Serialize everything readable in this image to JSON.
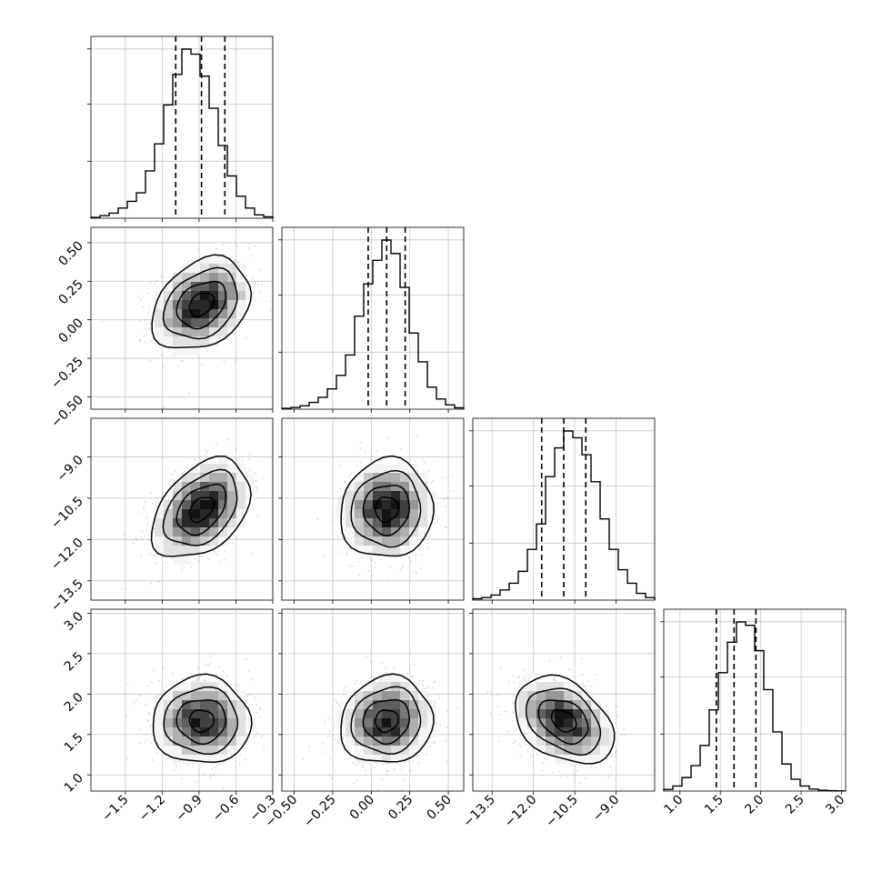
{
  "chart_data": {
    "type": "corner",
    "grid": true,
    "parameters": [
      {
        "range": [
          -1.78,
          -0.3
        ],
        "ticks": [
          -1.5,
          -1.2,
          -0.9,
          -0.6,
          -0.3
        ],
        "tick_labels": [
          "−1.5",
          "−1.2",
          "−0.9",
          "−0.6",
          "−0.3"
        ],
        "quantiles": [
          -1.09,
          -0.88,
          -0.69
        ],
        "hist": [
          0.005,
          0.015,
          0.03,
          0.06,
          0.1,
          0.15,
          0.28,
          0.44,
          0.67,
          0.85,
          1.0,
          0.97,
          0.84,
          0.65,
          0.43,
          0.25,
          0.13,
          0.06,
          0.02,
          0.008
        ]
      },
      {
        "range": [
          -0.58,
          0.6
        ],
        "ticks": [
          -0.5,
          -0.25,
          0.0,
          0.25,
          0.5
        ],
        "tick_labels": [
          "−0.50",
          "−0.25",
          "0.00",
          "0.25",
          "0.50"
        ],
        "quantiles": [
          -0.02,
          0.1,
          0.22
        ],
        "hist": [
          0.005,
          0.01,
          0.02,
          0.04,
          0.07,
          0.12,
          0.2,
          0.32,
          0.55,
          0.74,
          0.88,
          1.0,
          0.92,
          0.72,
          0.45,
          0.28,
          0.13,
          0.06,
          0.025,
          0.008
        ]
      },
      {
        "range": [
          -14.2,
          -7.6
        ],
        "ticks": [
          -13.5,
          -12.0,
          -10.5,
          -9.0
        ],
        "tick_labels": [
          "−13.5",
          "−12.0",
          "−10.5",
          "−9.0"
        ],
        "quantiles": [
          -11.7,
          -10.9,
          -10.1
        ],
        "hist": [
          0.008,
          0.015,
          0.03,
          0.06,
          0.1,
          0.17,
          0.3,
          0.45,
          0.73,
          0.9,
          1.0,
          0.96,
          0.86,
          0.7,
          0.48,
          0.3,
          0.18,
          0.1,
          0.04,
          0.015
        ]
      },
      {
        "range": [
          0.8,
          3.05
        ],
        "ticks": [
          1.0,
          1.5,
          2.0,
          2.5,
          3.0
        ],
        "tick_labels": [
          "1.0",
          "1.5",
          "2.0",
          "2.5",
          "3.0"
        ],
        "quantiles": [
          1.45,
          1.67,
          1.94
        ],
        "hist": [
          0.01,
          0.03,
          0.08,
          0.15,
          0.27,
          0.48,
          0.7,
          0.88,
          1.0,
          0.98,
          0.83,
          0.6,
          0.35,
          0.16,
          0.07,
          0.03,
          0.012,
          0.005,
          0.002,
          0.001
        ]
      }
    ],
    "panels": [
      {
        "row": 1,
        "col": 0,
        "mean": [
          -0.88,
          0.1
        ],
        "sd": [
          0.2,
          0.15
        ],
        "rho": 0.3
      },
      {
        "row": 2,
        "col": 0,
        "mean": [
          -0.88,
          -10.9
        ],
        "sd": [
          0.2,
          0.9
        ],
        "rho": 0.4
      },
      {
        "row": 2,
        "col": 1,
        "mean": [
          0.1,
          -10.9
        ],
        "sd": [
          0.15,
          0.9
        ],
        "rho": 0.05
      },
      {
        "row": 3,
        "col": 0,
        "mean": [
          -0.88,
          1.67
        ],
        "sd": [
          0.2,
          0.27
        ],
        "rho": 0.0
      },
      {
        "row": 3,
        "col": 1,
        "mean": [
          0.1,
          1.67
        ],
        "sd": [
          0.15,
          0.27
        ],
        "rho": 0.08
      },
      {
        "row": 3,
        "col": 2,
        "mean": [
          -10.9,
          1.67
        ],
        "sd": [
          0.9,
          0.27
        ],
        "rho": -0.35
      }
    ]
  }
}
